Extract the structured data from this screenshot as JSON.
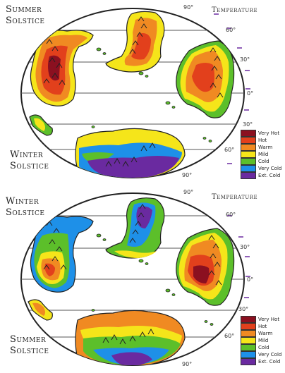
{
  "panels": [
    {
      "season_top": [
        "Summer",
        "Solstice"
      ],
      "season_bottom": [
        "Winter",
        "Solstice"
      ],
      "temperature_title": "Temperature",
      "lat_labels": [
        "90°",
        "60°",
        "30°",
        "0°",
        "30°",
        "60°",
        "90°"
      ]
    },
    {
      "season_top": [
        "Winter",
        "Solstice"
      ],
      "season_bottom": [
        "Summer",
        "Solstice"
      ],
      "temperature_title": "Temperature",
      "lat_labels": [
        "90°",
        "60°",
        "30°",
        "0°",
        "30°",
        "60°",
        "90°"
      ]
    }
  ],
  "legend": [
    {
      "label": "Very Hot",
      "color": "#8b1020"
    },
    {
      "label": "Hot",
      "color": "#e2401c"
    },
    {
      "label": "Warm",
      "color": "#f08a22"
    },
    {
      "label": "Mild",
      "color": "#f5e51a"
    },
    {
      "label": "Cold",
      "color": "#5cbf2a"
    },
    {
      "label": "Very Cold",
      "color": "#1e90e8"
    },
    {
      "label": "Ext. Cold",
      "color": "#6a2aa0"
    }
  ]
}
